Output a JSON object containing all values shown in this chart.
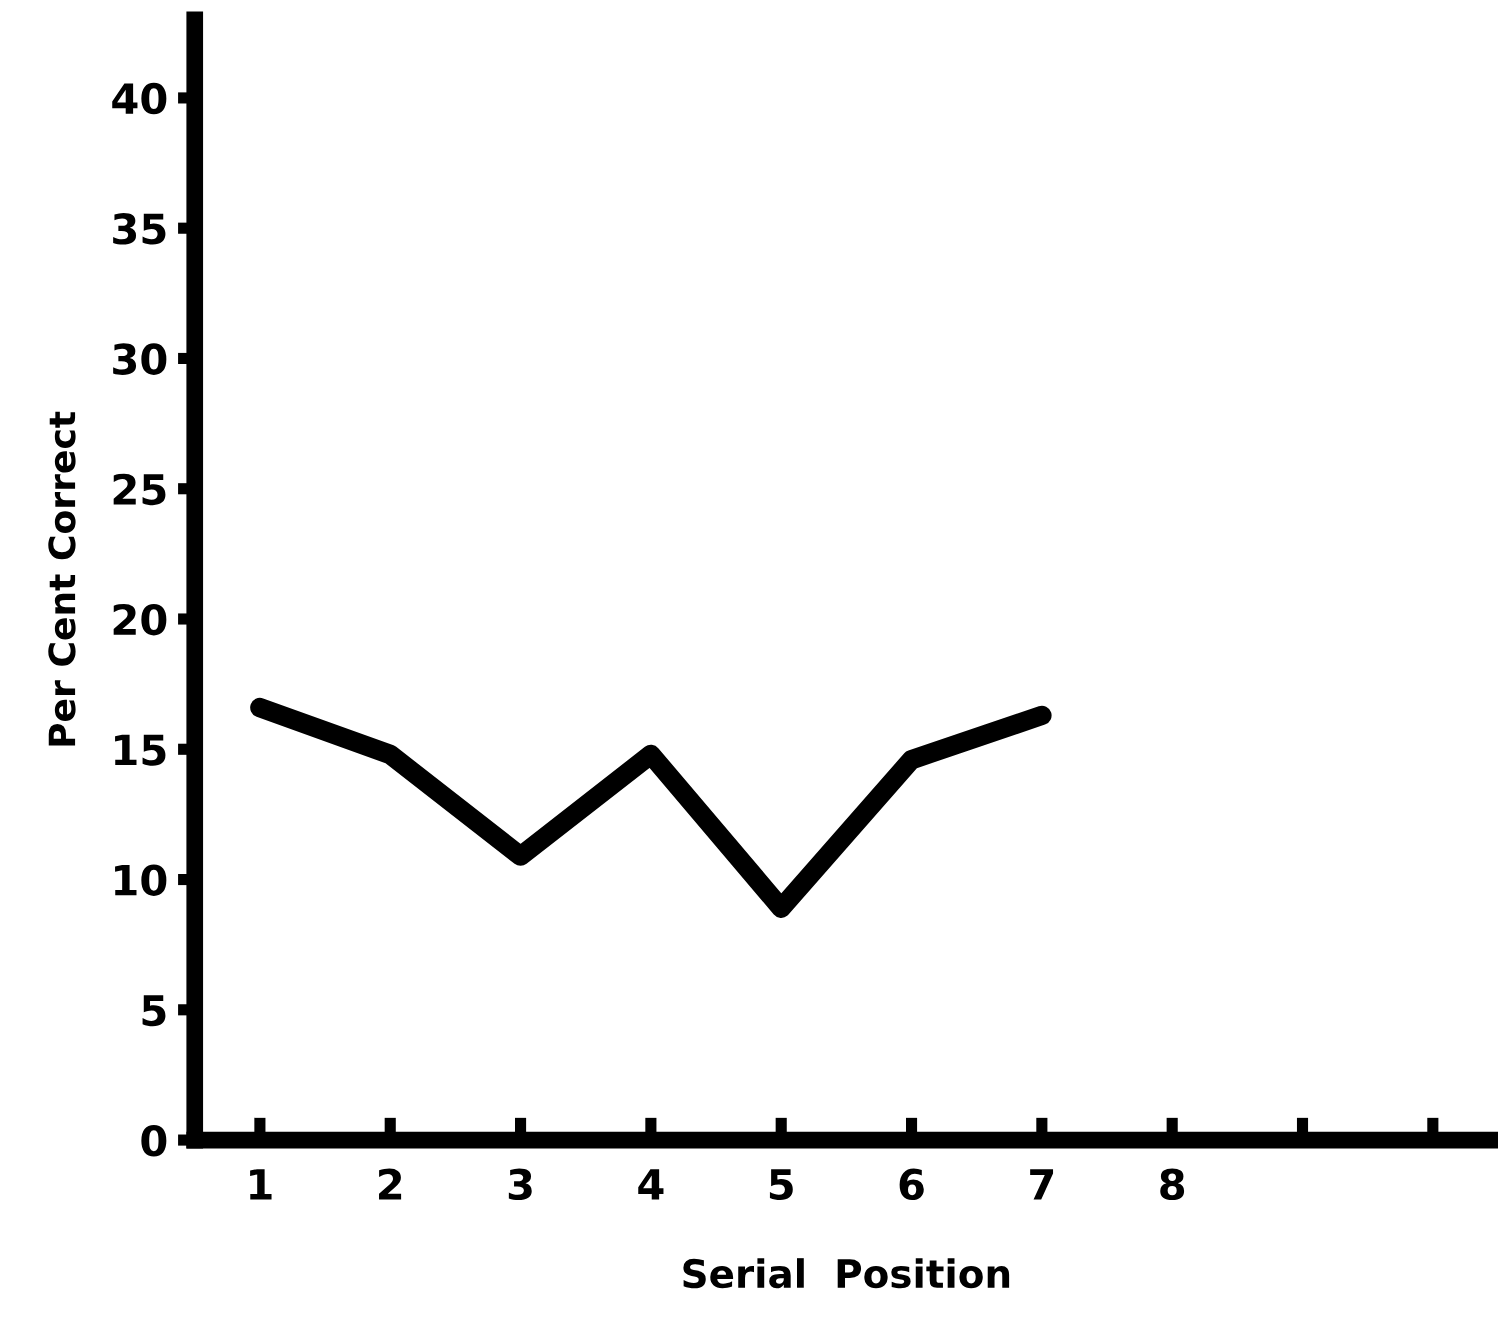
{
  "chart_data": {
    "type": "line",
    "xlabel": "Serial  Position",
    "ylabel": "Per Cent Correct",
    "x": [
      1,
      2,
      3,
      4,
      5,
      6,
      7
    ],
    "series": [
      {
        "color": "#000000",
        "values": [
          16.6,
          14.8,
          10.9,
          14.8,
          8.9,
          14.6,
          16.3
        ]
      }
    ],
    "xlim": [
      0.5,
      10.5
    ],
    "ylim": [
      0,
      43
    ],
    "xticks": [
      1,
      2,
      3,
      4,
      5,
      6,
      7,
      8,
      {
        "value": 9,
        "label": null
      },
      {
        "value": 10,
        "label": null
      }
    ],
    "yticks": [
      0,
      5,
      10,
      15,
      20,
      25,
      30,
      35,
      40
    ],
    "marker": "none",
    "line_style": "solid"
  }
}
